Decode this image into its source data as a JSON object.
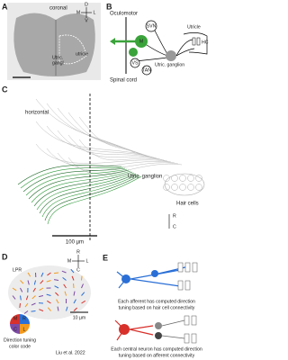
{
  "panels": {
    "a": {
      "label": "A",
      "title": "coronal",
      "orientation": {
        "left": "M",
        "right": "L",
        "top": "D",
        "bottom": "V"
      },
      "ganglion_label": [
        "Utric.",
        "gangl"
      ],
      "utricle_label": "utricle"
    },
    "b": {
      "label": "B",
      "top": "Oculomotor",
      "bottom": "Spinal cord",
      "nuclei": [
        "SVN",
        "M",
        "VS",
        "TAN"
      ],
      "utricle": "Utricle",
      "hair_cells": "HC",
      "ganglion": "Utric. ganglion"
    },
    "c": {
      "label": "C",
      "title": "horizontal",
      "ganglion": "Utric. ganglion",
      "hair_cells": "Hair cells",
      "orientation": {
        "top": "R",
        "bottom": "C"
      },
      "scale": "100 µm"
    },
    "d": {
      "label": "D",
      "region": "LPR",
      "orientation": {
        "top": "R",
        "left": "M",
        "right": "L",
        "bottom": "C"
      },
      "scale": "10 µm",
      "pie_labels": [
        "R",
        "M",
        "L",
        "C"
      ],
      "legend": [
        "Direction tuning",
        "color code"
      ],
      "citation": "Liu et al. 2022"
    },
    "e": {
      "label": "E",
      "afferent_text": [
        "Each afferent has computed direction",
        "tuning based on hair cell connectivity"
      ],
      "central_text": [
        "Each central neuron has computed direction",
        "tuning based on afferent connectivity"
      ]
    }
  }
}
